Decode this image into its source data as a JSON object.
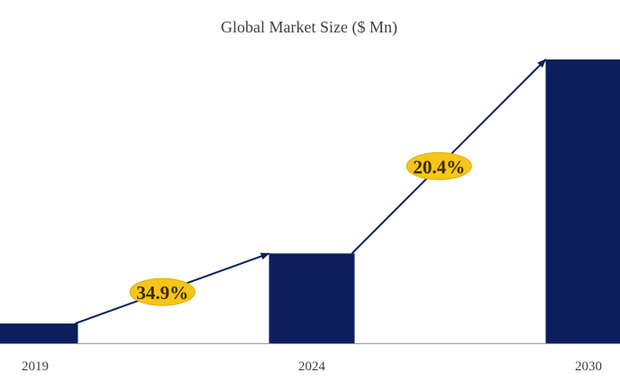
{
  "chart_data": {
    "type": "bar",
    "title": "Global Market Size ($ Mn)",
    "categories": [
      "2019",
      "2024",
      "2030"
    ],
    "values": [
      22,
      100,
      316
    ],
    "ylim": [
      0,
      316
    ],
    "xlabel": "",
    "ylabel": "",
    "grid": false,
    "colors": {
      "bar": "#0c1f5c",
      "arrow": "#0c1f5c",
      "badge": "#f5c518",
      "axis": "#9a9a9a"
    },
    "annotations": [
      {
        "label": "34.9%",
        "from": "2019",
        "to": "2024"
      },
      {
        "label": "20.4%",
        "from": "2024",
        "to": "2030"
      }
    ]
  }
}
